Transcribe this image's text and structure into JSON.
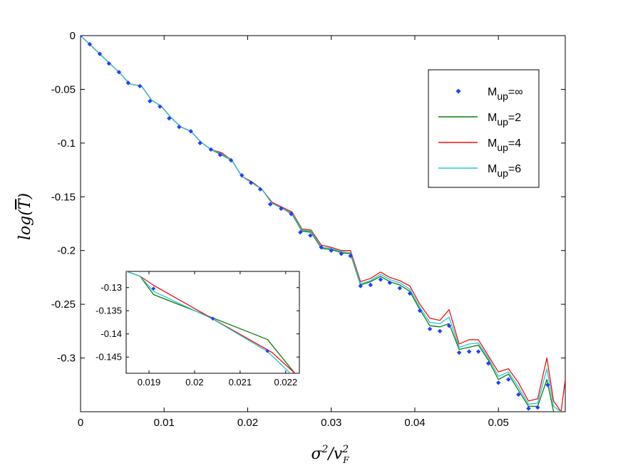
{
  "chart_data": {
    "type": "line",
    "xlabel": "σ²/v_F²",
    "ylabel": "log(T̄)",
    "xlim": [
      0,
      0.058
    ],
    "ylim": [
      -0.35,
      0
    ],
    "x_ticks": [
      {
        "value": 0,
        "label": "0"
      },
      {
        "value": 0.01,
        "label": "0.01"
      },
      {
        "value": 0.02,
        "label": "0.02"
      },
      {
        "value": 0.03,
        "label": "0.03"
      },
      {
        "value": 0.04,
        "label": "0.04"
      },
      {
        "value": 0.05,
        "label": "0.05"
      }
    ],
    "y_ticks": [
      {
        "value": 0,
        "label": "0"
      },
      {
        "value": -0.05,
        "label": "-0.05"
      },
      {
        "value": -0.1,
        "label": "-0.1"
      },
      {
        "value": -0.15,
        "label": "-0.15"
      },
      {
        "value": -0.2,
        "label": "-0.2"
      },
      {
        "value": -0.25,
        "label": "-0.25"
      },
      {
        "value": -0.3,
        "label": "-0.3"
      }
    ],
    "legend_position": "top-right",
    "series": [
      {
        "name": "M_up=∞",
        "legend_main": "M",
        "legend_sub": "up",
        "legend_suffix": "=∞",
        "style": "markers",
        "color": "#1f3fff",
        "x": [
          0,
          0.0011,
          0.0023,
          0.0034,
          0.0046,
          0.0057,
          0.0071,
          0.0083,
          0.0095,
          0.0106,
          0.0118,
          0.0132,
          0.0143,
          0.0156,
          0.0167,
          0.018,
          0.0193,
          0.0204,
          0.0215,
          0.0227,
          0.024,
          0.0252,
          0.0263,
          0.0275,
          0.0288,
          0.03,
          0.0312,
          0.0323,
          0.0335,
          0.0347,
          0.0359,
          0.037,
          0.0382,
          0.0394,
          0.0406,
          0.0418,
          0.043,
          0.0441,
          0.0453,
          0.0465,
          0.0476,
          0.0488,
          0.05,
          0.0512,
          0.0524,
          0.0536,
          0.0547,
          0.0559
        ],
        "y": [
          0,
          -0.008,
          -0.017,
          -0.026,
          -0.034,
          -0.044,
          -0.047,
          -0.061,
          -0.066,
          -0.077,
          -0.085,
          -0.089,
          -0.1,
          -0.106,
          -0.111,
          -0.116,
          -0.13,
          -0.137,
          -0.143,
          -0.157,
          -0.161,
          -0.166,
          -0.183,
          -0.186,
          -0.197,
          -0.2,
          -0.203,
          -0.205,
          -0.233,
          -0.232,
          -0.227,
          -0.23,
          -0.235,
          -0.24,
          -0.256,
          -0.273,
          -0.275,
          -0.27,
          -0.295,
          -0.294,
          -0.294,
          -0.305,
          -0.323,
          -0.32,
          -0.334,
          -0.347,
          -0.346,
          -0.325
        ]
      },
      {
        "name": "M_up=2",
        "legend_main": "M",
        "legend_sub": "up",
        "legend_suffix": "=2",
        "style": "line",
        "color": "#0a7d0a",
        "x": [
          0,
          0.0023,
          0.0046,
          0.0059,
          0.0073,
          0.0085,
          0.0097,
          0.0108,
          0.012,
          0.0132,
          0.0144,
          0.0156,
          0.0169,
          0.0181,
          0.0193,
          0.0205,
          0.0217,
          0.0229,
          0.0242,
          0.0253,
          0.0265,
          0.0276,
          0.0288,
          0.03,
          0.0312,
          0.0323,
          0.0335,
          0.0347,
          0.0359,
          0.037,
          0.0382,
          0.0394,
          0.0406,
          0.0418,
          0.043,
          0.0441,
          0.0453,
          0.0465,
          0.0476,
          0.0488,
          0.05,
          0.0512,
          0.0524,
          0.0536,
          0.0547,
          0.0558,
          0.0566,
          0.0575
        ],
        "y": [
          0,
          -0.017,
          -0.034,
          -0.045,
          -0.047,
          -0.06,
          -0.066,
          -0.076,
          -0.085,
          -0.089,
          -0.099,
          -0.106,
          -0.111,
          -0.116,
          -0.131,
          -0.137,
          -0.143,
          -0.156,
          -0.161,
          -0.166,
          -0.182,
          -0.183,
          -0.198,
          -0.199,
          -0.202,
          -0.203,
          -0.232,
          -0.229,
          -0.224,
          -0.229,
          -0.232,
          -0.238,
          -0.255,
          -0.27,
          -0.271,
          -0.268,
          -0.292,
          -0.29,
          -0.288,
          -0.302,
          -0.32,
          -0.315,
          -0.33,
          -0.345,
          -0.345,
          -0.32,
          -0.35,
          -0.35
        ]
      },
      {
        "name": "M_up=4",
        "legend_main": "M",
        "legend_sub": "up",
        "legend_suffix": "=4",
        "style": "line",
        "color": "#ee1111",
        "x": [
          0,
          0.0023,
          0.0046,
          0.0059,
          0.0073,
          0.0085,
          0.0097,
          0.0108,
          0.012,
          0.0132,
          0.0144,
          0.0156,
          0.0169,
          0.0181,
          0.0193,
          0.0205,
          0.0217,
          0.0229,
          0.0242,
          0.0253,
          0.0265,
          0.0276,
          0.0288,
          0.03,
          0.0312,
          0.0323,
          0.0335,
          0.0347,
          0.0359,
          0.037,
          0.0382,
          0.0394,
          0.0406,
          0.0418,
          0.043,
          0.0441,
          0.0453,
          0.0465,
          0.0476,
          0.0488,
          0.05,
          0.0512,
          0.0524,
          0.0536,
          0.0547,
          0.0558,
          0.0566,
          0.0575,
          0.058
        ],
        "y": [
          0,
          -0.017,
          -0.034,
          -0.045,
          -0.047,
          -0.06,
          -0.066,
          -0.076,
          -0.085,
          -0.089,
          -0.099,
          -0.106,
          -0.109,
          -0.116,
          -0.131,
          -0.136,
          -0.143,
          -0.155,
          -0.16,
          -0.164,
          -0.18,
          -0.181,
          -0.195,
          -0.197,
          -0.2,
          -0.2,
          -0.229,
          -0.226,
          -0.22,
          -0.225,
          -0.228,
          -0.233,
          -0.25,
          -0.263,
          -0.265,
          -0.255,
          -0.287,
          -0.283,
          -0.283,
          -0.298,
          -0.313,
          -0.31,
          -0.323,
          -0.34,
          -0.338,
          -0.3,
          -0.34,
          -0.35,
          -0.32
        ]
      },
      {
        "name": "M_up=6",
        "legend_main": "M",
        "legend_sub": "up",
        "legend_suffix": "=6",
        "style": "line",
        "color": "#22c8d8",
        "x": [
          0,
          0.0023,
          0.0046,
          0.0059,
          0.0073,
          0.0085,
          0.0097,
          0.0108,
          0.012,
          0.0132,
          0.0144,
          0.0156,
          0.0169,
          0.0181,
          0.0193,
          0.0205,
          0.0217,
          0.0229,
          0.0242,
          0.0253,
          0.0265,
          0.0276,
          0.0288,
          0.03,
          0.0312,
          0.0323,
          0.0335,
          0.0347,
          0.0359,
          0.037,
          0.0382,
          0.0394,
          0.0406,
          0.0418,
          0.043,
          0.0441,
          0.0453,
          0.0465,
          0.0476,
          0.0488,
          0.05,
          0.0512,
          0.0524,
          0.0536,
          0.0547,
          0.0558,
          0.0566,
          0.0575
        ],
        "y": [
          0,
          -0.017,
          -0.034,
          -0.045,
          -0.047,
          -0.06,
          -0.066,
          -0.076,
          -0.085,
          -0.089,
          -0.099,
          -0.106,
          -0.11,
          -0.116,
          -0.131,
          -0.137,
          -0.143,
          -0.156,
          -0.161,
          -0.165,
          -0.181,
          -0.182,
          -0.197,
          -0.198,
          -0.201,
          -0.202,
          -0.231,
          -0.228,
          -0.222,
          -0.227,
          -0.23,
          -0.236,
          -0.253,
          -0.267,
          -0.268,
          -0.262,
          -0.29,
          -0.287,
          -0.286,
          -0.3,
          -0.317,
          -0.313,
          -0.327,
          -0.343,
          -0.342,
          -0.31,
          -0.345,
          -0.35
        ]
      }
    ],
    "inset": {
      "xlim": [
        0.0185,
        0.0223
      ],
      "ylim": [
        -0.1485,
        -0.1265
      ],
      "x_ticks": [
        {
          "value": 0.019,
          "label": "0.019"
        },
        {
          "value": 0.02,
          "label": "0.02"
        },
        {
          "value": 0.021,
          "label": "0.021"
        },
        {
          "value": 0.022,
          "label": "0.022"
        }
      ],
      "y_ticks": [
        {
          "value": -0.13,
          "label": "-0.13"
        },
        {
          "value": -0.135,
          "label": "-0.135"
        },
        {
          "value": -0.14,
          "label": "-0.14"
        },
        {
          "value": -0.145,
          "label": "-0.145"
        }
      ],
      "series": [
        {
          "name": "M_up=∞",
          "style": "markers",
          "color": "#1f3fff",
          "x": [
            0.0191,
            0.0204,
            0.0216
          ],
          "y": [
            -0.1302,
            -0.1367,
            -0.1437
          ]
        },
        {
          "name": "M_up=2",
          "style": "line",
          "color": "#0a7d0a",
          "x": [
            0.0185,
            0.0188,
            0.0191,
            0.0216,
            0.0222
          ],
          "y": [
            -0.1265,
            -0.1275,
            -0.1315,
            -0.1412,
            -0.1485
          ]
        },
        {
          "name": "M_up=4",
          "style": "line",
          "color": "#ee1111",
          "x": [
            0.0185,
            0.0188,
            0.0191,
            0.0217,
            0.0222
          ],
          "y": [
            -0.1265,
            -0.1275,
            -0.1295,
            -0.144,
            -0.1485
          ]
        },
        {
          "name": "M_up=6",
          "style": "line",
          "color": "#22c8d8",
          "x": [
            0.0185,
            0.0188,
            0.0191,
            0.0204,
            0.0216,
            0.0221
          ],
          "y": [
            -0.1265,
            -0.1275,
            -0.1308,
            -0.1368,
            -0.1438,
            -0.1485
          ]
        }
      ]
    }
  }
}
